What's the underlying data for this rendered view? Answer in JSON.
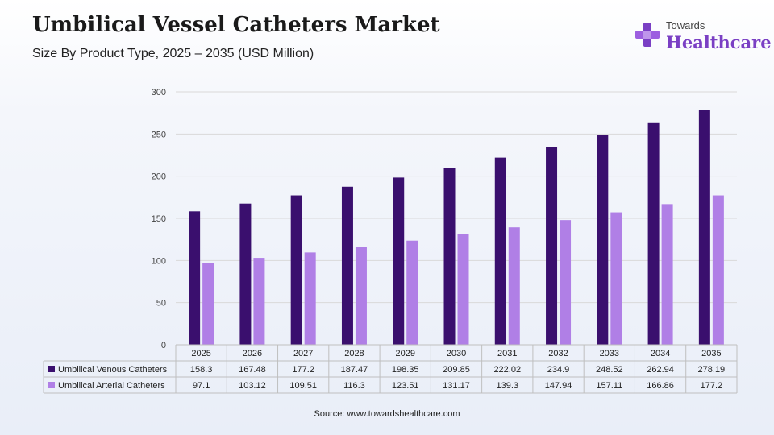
{
  "header": {
    "title": "Umbilical Vessel Catheters Market",
    "subtitle": "Size By Product Type, 2025 – 2035 (USD Million)"
  },
  "logo": {
    "top": "Towards",
    "main": "Healthcare",
    "icon": "plus-cross-icon"
  },
  "source": "Source: www.towardshealthcare.com",
  "colors": {
    "venous": "#3a0f6e",
    "arterial": "#b07fe6",
    "grid": "#d9d9d9"
  },
  "chart_data": {
    "type": "bar",
    "categories": [
      "2025",
      "2026",
      "2027",
      "2028",
      "2029",
      "2030",
      "2031",
      "2032",
      "2033",
      "2034",
      "2035"
    ],
    "series": [
      {
        "name": "Umbilical Venous Catheters",
        "values": [
          158.3,
          167.48,
          177.2,
          187.47,
          198.35,
          209.85,
          222.02,
          234.9,
          248.52,
          262.94,
          278.19
        ],
        "labels": [
          "158.3",
          "167.48",
          "177.2",
          "187.47",
          "198.35",
          "209.85",
          "222.02",
          "234.9",
          "248.52",
          "262.94",
          "278.19"
        ]
      },
      {
        "name": "Umbilical Arterial Catheters",
        "values": [
          97.1,
          103.12,
          109.51,
          116.3,
          123.51,
          131.17,
          139.3,
          147.94,
          157.11,
          166.86,
          177.2
        ],
        "labels": [
          "97.1",
          "103.12",
          "109.51",
          "116.3",
          "123.51",
          "131.17",
          "139.3",
          "147.94",
          "157.11",
          "166.86",
          "177.2"
        ]
      }
    ],
    "ylim": [
      0,
      300
    ],
    "yticks": [
      "0",
      "50",
      "100",
      "150",
      "200",
      "250",
      "300"
    ],
    "grid": true,
    "legend": "data-table-below"
  }
}
